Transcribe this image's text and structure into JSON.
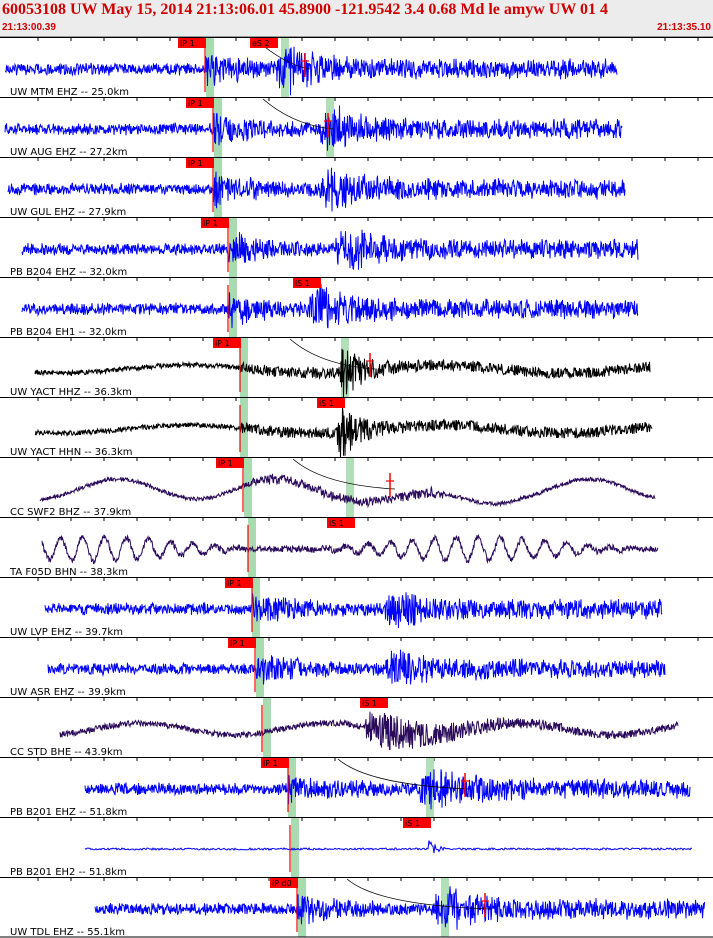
{
  "window": {
    "title": "60053108 UW May 15, 2014 21:13:06.01   45.8900 -121.9542  3.4 0.68 Md le amyw UW 01   4",
    "time_start": "21:13:00.39",
    "time_end": "21:13:35.10"
  },
  "colors": {
    "header_text": "#d00000",
    "header_bg": "#ececec",
    "trace_short_period": "#0000ff",
    "trace_strong_motion": "#000000",
    "trace_broadband": "#2a0a5a",
    "phase_flag": "#ff0000",
    "prediction_band": "#a8dcb0",
    "separator": "#000000"
  },
  "traces": [
    {
      "label": "UW MTM EHZ -- 25.0km",
      "picks": [
        {
          "label": "iP 1"
        },
        {
          "label": "eS 2"
        }
      ],
      "color": "trace_short_period"
    },
    {
      "label": "UW AUG EHZ -- 27.2km",
      "picks": [
        {
          "label": "iP 1"
        }
      ],
      "color": "trace_short_period"
    },
    {
      "label": "UW GUL EHZ -- 27.9km",
      "picks": [
        {
          "label": "iP 1"
        }
      ],
      "color": "trace_short_period"
    },
    {
      "label": "PB B204 EHZ -- 32.0km",
      "picks": [
        {
          "label": "iP 1"
        }
      ],
      "color": "trace_short_period"
    },
    {
      "label": "PB B204 EH1 -- 32.0km",
      "picks": [
        {
          "label": "iS 1"
        }
      ],
      "color": "trace_short_period"
    },
    {
      "label": "UW YACT HHZ -- 36.3km",
      "picks": [
        {
          "label": "iP 1"
        }
      ],
      "color": "trace_strong_motion"
    },
    {
      "label": "UW YACT HHN -- 36.3km",
      "picks": [
        {
          "label": "iS 1"
        }
      ],
      "color": "trace_strong_motion"
    },
    {
      "label": "CC SWF2 BHZ -- 37.9km",
      "picks": [
        {
          "label": "iP 1"
        }
      ],
      "color": "trace_broadband"
    },
    {
      "label": "TA F05D BHN -- 38.3km",
      "picks": [
        {
          "label": "iS 1"
        }
      ],
      "color": "trace_broadband"
    },
    {
      "label": "UW LVP EHZ -- 39.7km",
      "picks": [
        {
          "label": "iP 1"
        }
      ],
      "color": "trace_short_period"
    },
    {
      "label": "UW ASR EHZ -- 39.9km",
      "picks": [
        {
          "label": "iP 1"
        }
      ],
      "color": "trace_short_period"
    },
    {
      "label": "CC STD BHE -- 43.9km",
      "picks": [
        {
          "label": "iS 1"
        }
      ],
      "color": "trace_broadband"
    },
    {
      "label": "PB B201 EHZ -- 51.8km",
      "picks": [
        {
          "label": "iP 1"
        }
      ],
      "color": "trace_short_period"
    },
    {
      "label": "PB B201 EH2 -- 51.8km",
      "picks": [
        {
          "label": "iS 1"
        }
      ],
      "color": "trace_short_period"
    },
    {
      "label": "UW TDL EHZ -- 55.1km",
      "picks": [
        {
          "label": "iP d0"
        }
      ],
      "color": "trace_short_period"
    }
  ]
}
